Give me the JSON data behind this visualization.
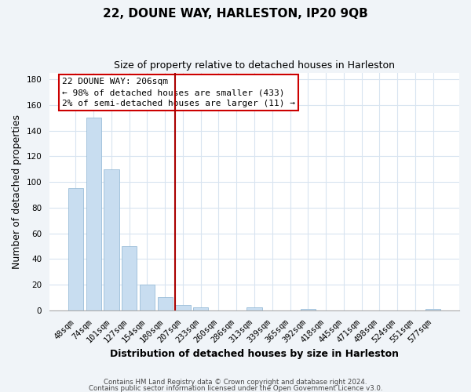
{
  "title": "22, DOUNE WAY, HARLESTON, IP20 9QB",
  "subtitle": "Size of property relative to detached houses in Harleston",
  "xlabel": "Distribution of detached houses by size in Harleston",
  "ylabel": "Number of detached properties",
  "bar_labels": [
    "48sqm",
    "74sqm",
    "101sqm",
    "127sqm",
    "154sqm",
    "180sqm",
    "207sqm",
    "233sqm",
    "260sqm",
    "286sqm",
    "313sqm",
    "339sqm",
    "365sqm",
    "392sqm",
    "418sqm",
    "445sqm",
    "471sqm",
    "498sqm",
    "524sqm",
    "551sqm",
    "577sqm"
  ],
  "bar_values": [
    95,
    150,
    110,
    50,
    20,
    10,
    4,
    2,
    0,
    0,
    2,
    0,
    0,
    1,
    0,
    0,
    0,
    0,
    0,
    0,
    1
  ],
  "bar_color": "#c8ddf0",
  "bar_edge_color": "#99bdd8",
  "redline_index": 6,
  "annotation_title": "22 DOUNE WAY: 206sqm",
  "annotation_line1": "← 98% of detached houses are smaller (433)",
  "annotation_line2": "2% of semi-detached houses are larger (11) →",
  "annotation_box_color": "#ffffff",
  "annotation_box_edge": "#cc0000",
  "redline_color": "#aa0000",
  "footer1": "Contains HM Land Registry data © Crown copyright and database right 2024.",
  "footer2": "Contains public sector information licensed under the Open Government Licence v3.0.",
  "ylim": [
    0,
    185
  ],
  "yticks": [
    0,
    20,
    40,
    60,
    80,
    100,
    120,
    140,
    160,
    180
  ],
  "plot_bg_color": "#ffffff",
  "fig_bg_color": "#f0f4f8",
  "grid_color": "#d8e4f0",
  "title_fontsize": 11,
  "subtitle_fontsize": 9,
  "tick_fontsize": 7.5,
  "label_fontsize": 9,
  "annotation_fontsize": 8
}
